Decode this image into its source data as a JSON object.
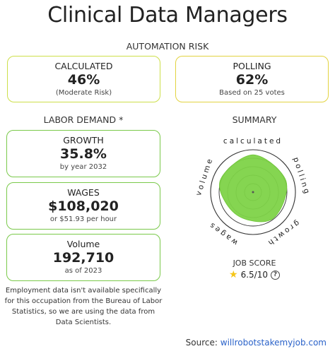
{
  "title": "Clinical Data Managers",
  "automation_risk": {
    "heading": "AUTOMATION RISK",
    "calculated": {
      "label": "CALCULATED",
      "value": "46%",
      "sub": "(Moderate Risk)"
    },
    "polling": {
      "label": "POLLING",
      "value": "62%",
      "sub": "Based on 25 votes"
    }
  },
  "labor_demand": {
    "heading": "LABOR DEMAND *",
    "growth": {
      "label": "GROWTH",
      "value": "35.8%",
      "sub": "by year 2032"
    },
    "wages": {
      "label": "WAGES",
      "value": "$108,020",
      "sub": "or $51.93 per hour"
    },
    "volume": {
      "label": "Volume",
      "value": "192,710",
      "sub": "as of 2023"
    }
  },
  "note": "Employment data isn't available specifically for this occupation from the Bureau of Labor Statistics, so we are using the data from Data Scientists.",
  "summary": {
    "heading": "SUMMARY",
    "axes": [
      "calculated",
      "polling",
      "growth",
      "wages",
      "volume"
    ],
    "fill_color": "#7ed348",
    "levels": {
      "calculated": 0.88,
      "polling": 0.82,
      "growth": 0.78,
      "wages": 0.66,
      "volume": 0.82
    }
  },
  "job_score": {
    "label": "JOB SCORE",
    "value": "6.5/10",
    "star_icon": "star-icon",
    "help_icon": "question-circle-icon"
  },
  "source": {
    "label": "Source:",
    "link": "willrobotstakemyjob.com"
  },
  "colors": {
    "risk_calc_border": "#cddf4a",
    "risk_poll_border": "#e2d340",
    "labor_border": "#7ac94a",
    "link": "#2a62c9"
  }
}
